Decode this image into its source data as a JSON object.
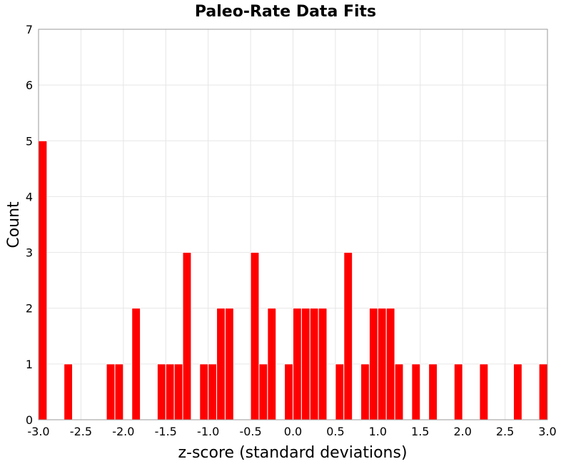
{
  "chart_data": {
    "type": "bar",
    "title": "Paleo-Rate Data Fits",
    "xlabel": "z-score (standard deviations)",
    "ylabel": "Count",
    "xlim": [
      -3.0,
      3.0
    ],
    "ylim": [
      0,
      7
    ],
    "bin_width": 0.1,
    "grid": true,
    "bar_color": "#ff0000",
    "x_ticks": [
      "-3.0",
      "-2.5",
      "-2.0",
      "-1.5",
      "-1.0",
      "-0.5",
      "0.0",
      "0.5",
      "1.0",
      "1.5",
      "2.0",
      "2.5",
      "3.0"
    ],
    "y_ticks": [
      "0",
      "1",
      "2",
      "3",
      "4",
      "5",
      "6",
      "7"
    ],
    "bins": [
      {
        "x": -2.95,
        "count": 5
      },
      {
        "x": -2.65,
        "count": 1
      },
      {
        "x": -2.15,
        "count": 1
      },
      {
        "x": -2.05,
        "count": 1
      },
      {
        "x": -1.85,
        "count": 2
      },
      {
        "x": -1.55,
        "count": 1
      },
      {
        "x": -1.45,
        "count": 1
      },
      {
        "x": -1.35,
        "count": 1
      },
      {
        "x": -1.25,
        "count": 3
      },
      {
        "x": -1.05,
        "count": 1
      },
      {
        "x": -0.95,
        "count": 1
      },
      {
        "x": -0.85,
        "count": 2
      },
      {
        "x": -0.75,
        "count": 2
      },
      {
        "x": -0.45,
        "count": 3
      },
      {
        "x": -0.35,
        "count": 1
      },
      {
        "x": -0.25,
        "count": 2
      },
      {
        "x": -0.05,
        "count": 1
      },
      {
        "x": 0.05,
        "count": 2
      },
      {
        "x": 0.15,
        "count": 2
      },
      {
        "x": 0.25,
        "count": 2
      },
      {
        "x": 0.35,
        "count": 2
      },
      {
        "x": 0.55,
        "count": 1
      },
      {
        "x": 0.65,
        "count": 3
      },
      {
        "x": 0.85,
        "count": 1
      },
      {
        "x": 0.95,
        "count": 2
      },
      {
        "x": 1.05,
        "count": 2
      },
      {
        "x": 1.15,
        "count": 2
      },
      {
        "x": 1.25,
        "count": 1
      },
      {
        "x": 1.45,
        "count": 1
      },
      {
        "x": 1.65,
        "count": 1
      },
      {
        "x": 1.95,
        "count": 1
      },
      {
        "x": 2.25,
        "count": 1
      },
      {
        "x": 2.65,
        "count": 1
      },
      {
        "x": 2.95,
        "count": 1
      }
    ]
  }
}
